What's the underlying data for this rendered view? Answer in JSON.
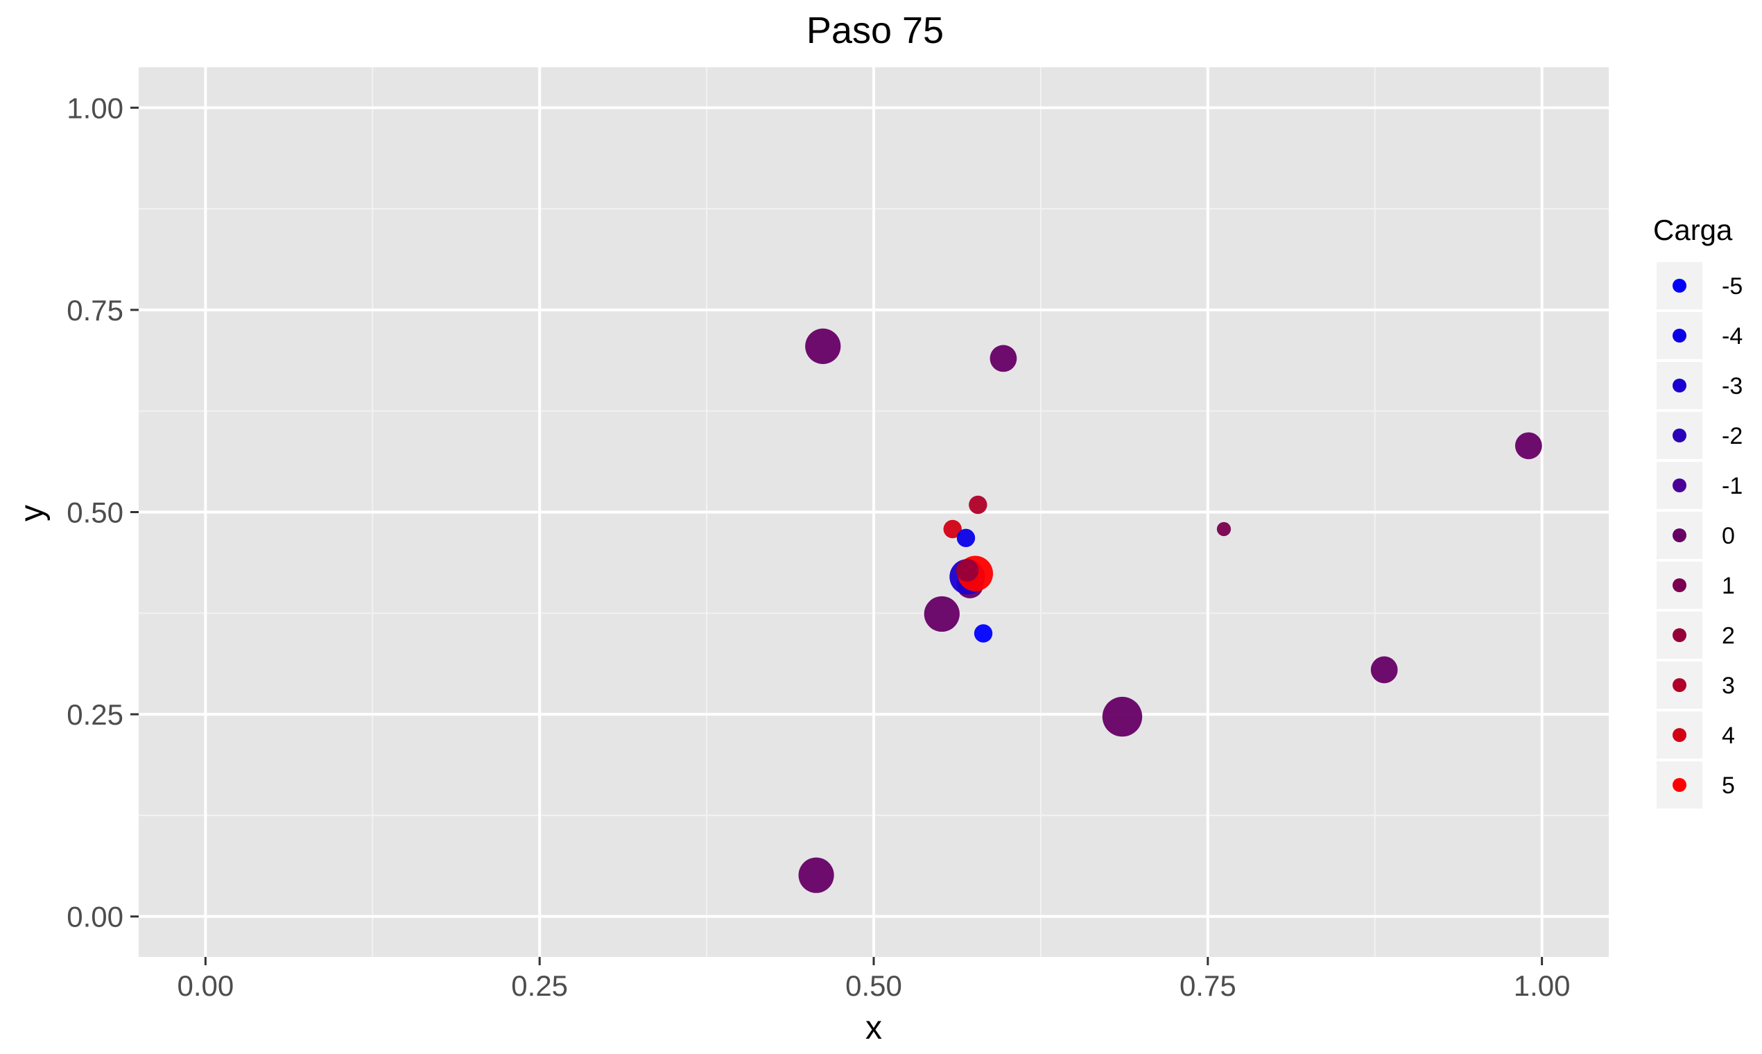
{
  "chart_data": {
    "type": "scatter",
    "title": "Paso 75",
    "xlabel": "x",
    "ylabel": "y",
    "xlim": [
      -0.05,
      1.05
    ],
    "ylim": [
      -0.05,
      1.05
    ],
    "x_ticks": [
      0.0,
      0.25,
      0.5,
      0.75,
      1.0
    ],
    "y_ticks": [
      0.0,
      0.25,
      0.5,
      0.75,
      1.0
    ],
    "x_tick_labels": [
      "0.00",
      "0.25",
      "0.50",
      "0.75",
      "1.00"
    ],
    "y_tick_labels": [
      "0.00",
      "0.25",
      "0.50",
      "0.75",
      "1.00"
    ],
    "grid": true,
    "legend": {
      "title": "Carga",
      "position": "right",
      "entries": [
        {
          "label": "-5",
          "color": "#0000FF"
        },
        {
          "label": "-4",
          "color": "#0A00E8"
        },
        {
          "label": "-3",
          "color": "#1A00D0"
        },
        {
          "label": "-2",
          "color": "#2A00B8"
        },
        {
          "label": "-1",
          "color": "#4A0098"
        },
        {
          "label": "0",
          "color": "#660066"
        },
        {
          "label": "1",
          "color": "#7A0050"
        },
        {
          "label": "2",
          "color": "#95003A"
        },
        {
          "label": "3",
          "color": "#B00028"
        },
        {
          "label": "4",
          "color": "#D20014"
        },
        {
          "label": "5",
          "color": "#FF0000"
        }
      ]
    },
    "points": [
      {
        "x": 0.462,
        "y": 0.705,
        "charge": 0,
        "size": 3
      },
      {
        "x": 0.597,
        "y": 0.69,
        "charge": 0,
        "size": 2
      },
      {
        "x": 0.99,
        "y": 0.582,
        "charge": 0,
        "size": 2
      },
      {
        "x": 0.578,
        "y": 0.509,
        "charge": 3,
        "size": 1
      },
      {
        "x": 0.559,
        "y": 0.479,
        "charge": 4,
        "size": 1
      },
      {
        "x": 0.569,
        "y": 0.468,
        "charge": -4,
        "size": 1
      },
      {
        "x": 0.762,
        "y": 0.479,
        "charge": 1,
        "size": 0.5
      },
      {
        "x": 0.572,
        "y": 0.41,
        "charge": 0,
        "size": 2
      },
      {
        "x": 0.57,
        "y": 0.42,
        "charge": -3,
        "size": 3
      },
      {
        "x": 0.576,
        "y": 0.424,
        "charge": 5,
        "size": 3
      },
      {
        "x": 0.57,
        "y": 0.428,
        "charge": 2,
        "size": 1.5
      },
      {
        "x": 0.551,
        "y": 0.374,
        "charge": 0,
        "size": 3
      },
      {
        "x": 0.582,
        "y": 0.35,
        "charge": -5,
        "size": 1
      },
      {
        "x": 0.882,
        "y": 0.305,
        "charge": 0,
        "size": 2
      },
      {
        "x": 0.686,
        "y": 0.247,
        "charge": 0,
        "size": 3.5
      },
      {
        "x": 0.457,
        "y": 0.051,
        "charge": 0,
        "size": 3
      }
    ]
  }
}
